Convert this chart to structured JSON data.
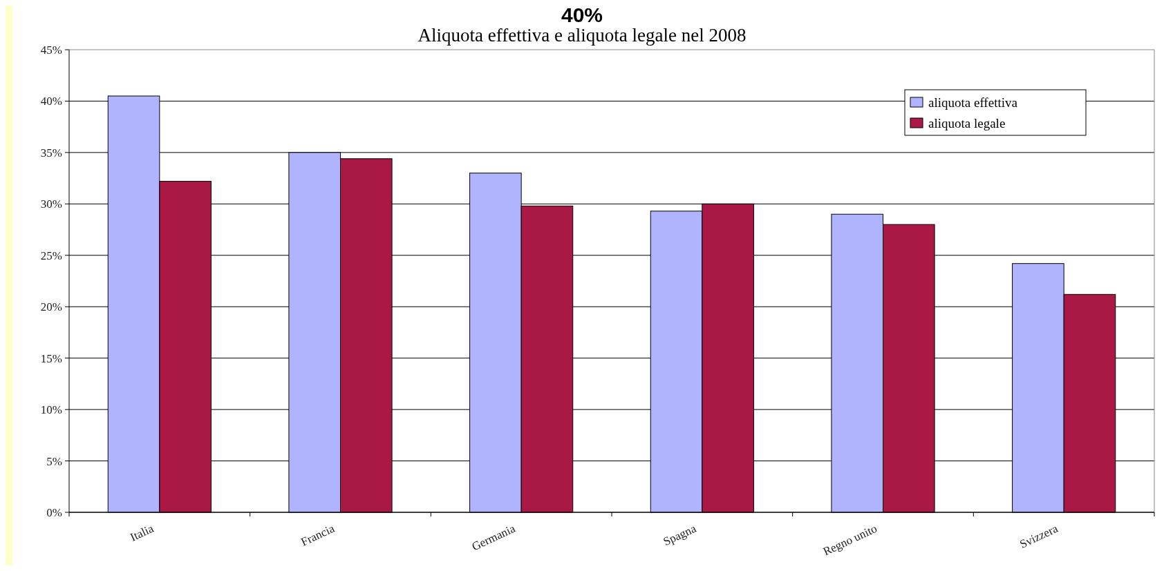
{
  "chart_data": {
    "type": "bar",
    "title": "Aliquota effettiva e aliquota legale nel 2008",
    "annotations": [
      "40%"
    ],
    "categories": [
      "Italia",
      "Francia",
      "Germania",
      "Spagna",
      "Regno unito",
      "Svizzera"
    ],
    "series": [
      {
        "name": "aliquota effettiva",
        "color": "#b0b4fe",
        "values": [
          40.5,
          35,
          33,
          29.3,
          29,
          24.2
        ]
      },
      {
        "name": "aliquota legale",
        "color": "#aa1945",
        "values": [
          32.2,
          34.4,
          29.8,
          30,
          28,
          21.2
        ]
      }
    ],
    "ylim": [
      0,
      45
    ],
    "yticks": [
      {
        "value": 0,
        "label": "0%"
      },
      {
        "value": 5,
        "label": "5%"
      },
      {
        "value": 10,
        "label": "10%"
      },
      {
        "value": 15,
        "label": "15%"
      },
      {
        "value": 20,
        "label": "20%"
      },
      {
        "value": 25,
        "label": "25%"
      },
      {
        "value": 30,
        "label": "30%"
      },
      {
        "value": 35,
        "label": "35%"
      },
      {
        "value": 40,
        "label": "40%"
      },
      {
        "value": 45,
        "label": "45%"
      }
    ],
    "grid": "y",
    "legend": "top right"
  }
}
